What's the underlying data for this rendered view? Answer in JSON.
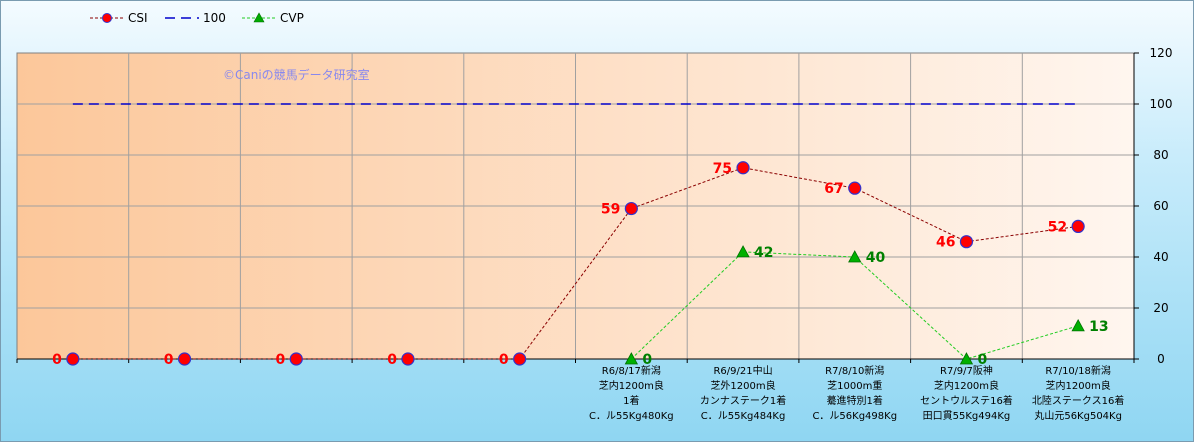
{
  "watermark": "©Caniの競馬データ研究室",
  "legend": [
    {
      "label": "CSI",
      "color": "#8b0000",
      "marker_color": "#ff0000",
      "marker": "circle",
      "dash": "3,2"
    },
    {
      "label": "100",
      "color": "#0000cc",
      "marker": "none",
      "dash": "10,6"
    },
    {
      "label": "CVP",
      "color": "#22cc22",
      "marker_color": "#00aa00",
      "marker": "triangle",
      "dash": "3,2"
    }
  ],
  "chart_data": {
    "type": "line",
    "ylim": [
      0,
      120
    ],
    "yticks": [
      0,
      20,
      40,
      60,
      80,
      100,
      120
    ],
    "grid": true,
    "legend_position": "top-left",
    "y_axis_side": "right",
    "categories": [
      [],
      [],
      [],
      [],
      [],
      [
        "R6/8/17新潟",
        "芝内1200m良",
        "1着",
        "C．ル55Kg480Kg"
      ],
      [
        "R6/9/21中山",
        "芝外1200m良",
        "カンナステーク1着",
        "C．ル55Kg484Kg"
      ],
      [
        "R7/8/10新潟",
        "芝1000m重",
        "驀進特別1着",
        "C．ル56Kg498Kg"
      ],
      [
        "R7/9/7阪神",
        "芝内1200m良",
        "セントウルステ16着",
        "田口貫55Kg494Kg"
      ],
      [
        "R7/10/18新潟",
        "芝内1200m良",
        "北陸ステークス16着",
        "丸山元56Kg504Kg"
      ]
    ],
    "series": [
      {
        "name": "CSI",
        "values": [
          0,
          0,
          0,
          0,
          0,
          59,
          75,
          67,
          46,
          52
        ],
        "labels": [
          "0",
          "0",
          "0",
          "0",
          "0",
          "59",
          "75",
          "67",
          "46",
          "52"
        ]
      },
      {
        "name": "100",
        "values": [
          100,
          100,
          100,
          100,
          100,
          100,
          100,
          100,
          100,
          100
        ]
      },
      {
        "name": "CVP",
        "values": [
          null,
          null,
          null,
          null,
          null,
          0,
          42,
          40,
          0,
          13
        ],
        "labels": [
          "",
          "",
          "",
          "",
          "",
          "0",
          "42",
          "40",
          "0",
          "13"
        ]
      }
    ]
  }
}
